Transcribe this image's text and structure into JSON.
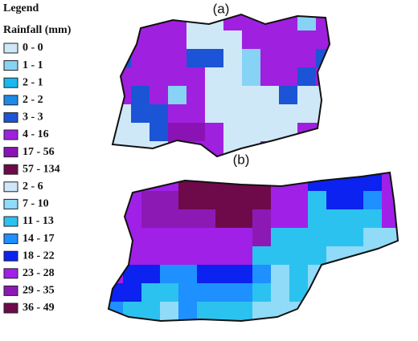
{
  "legend": {
    "title": "Legend",
    "subtitle": "Rainfall (mm)",
    "items": [
      {
        "label": "0 - 0",
        "color": "#cfe8f8"
      },
      {
        "label": "1 - 1",
        "color": "#87d3f5"
      },
      {
        "label": "2 - 1",
        "color": "#19b8ef"
      },
      {
        "label": "2 - 2",
        "color": "#1e8ae8"
      },
      {
        "label": "3 - 3",
        "color": "#1b54d6"
      },
      {
        "label": "4 - 16",
        "color": "#a020e0"
      },
      {
        "label": "17 - 56",
        "color": "#8b13b5"
      },
      {
        "label": "57 - 134",
        "color": "#6e0a4a"
      },
      {
        "label": "2 - 6",
        "color": "#cfe8f8"
      },
      {
        "label": "7 - 10",
        "color": "#8fdbf8"
      },
      {
        "label": "11 - 13",
        "color": "#2cc2f0"
      },
      {
        "label": "14 - 17",
        "color": "#1e90ff"
      },
      {
        "label": "18 - 22",
        "color": "#0c22f0"
      },
      {
        "label": "23 - 28",
        "color": "#a020e8"
      },
      {
        "label": "29 - 35",
        "color": "#8d19b5"
      },
      {
        "label": "36 - 49",
        "color": "#6e0a4a"
      }
    ]
  },
  "maps": [
    {
      "label": "(a)"
    },
    {
      "label": "(b)"
    }
  ]
}
